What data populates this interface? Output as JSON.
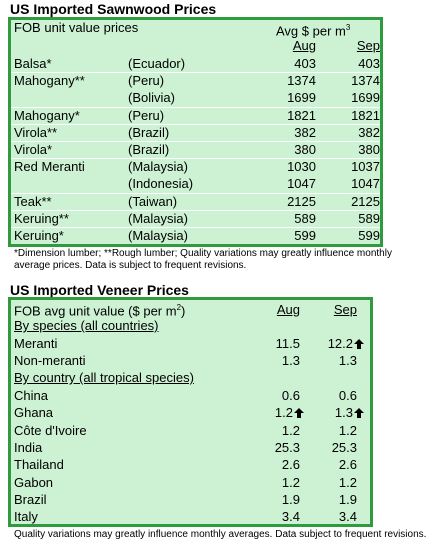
{
  "sawnwood": {
    "title": "US Imported Sawnwood Prices",
    "header": {
      "label": "FOB unit value prices",
      "price_label": "Avg $ per m",
      "price_exponent": "3",
      "aug": "Aug",
      "sep": "Sep"
    },
    "rows": [
      {
        "wood": "Balsa*",
        "origin": "(Ecuador)",
        "aug": 403,
        "sep": 403
      },
      {
        "wood": "Mahogany**",
        "origin": "(Peru)",
        "aug": 1374,
        "sep": 1374
      },
      {
        "origin": "(Bolivia)",
        "aug": 1699,
        "sep": 1699
      },
      {
        "wood": "Mahogany*",
        "origin": "(Peru)",
        "aug": 1821,
        "sep": 1821
      },
      {
        "wood": "Virola**",
        "origin": "(Brazil)",
        "aug": 382,
        "sep": 382
      },
      {
        "wood": "Virola*",
        "origin": "(Brazil)",
        "aug": 380,
        "sep": 380
      },
      {
        "wood": "Red Meranti",
        "origin": "(Malaysia)",
        "aug": 1030,
        "sep": 1037
      },
      {
        "origin": "(Indonesia)",
        "aug": 1047,
        "sep": 1047
      },
      {
        "wood": "Teak**",
        "origin": "(Taiwan)",
        "aug": 2125,
        "sep": 2125
      },
      {
        "wood": "Keruing**",
        "origin": "(Malaysia)",
        "aug": 589,
        "sep": 589
      },
      {
        "wood": "Keruing*",
        "origin": "(Malaysia)",
        "aug": 599,
        "sep": 599
      }
    ],
    "footnote": "*Dimension lumber; **Rough lumber; Quality variations may greatly influence monthly average prices. Data is subject to frequent revisions."
  },
  "veneer": {
    "title": "US Imported Veneer Prices",
    "header": {
      "label": "FOB avg unit value ($ per m",
      "exponent": "2",
      "label_end": ")",
      "aug": "Aug",
      "sep": "Sep"
    },
    "by_species": {
      "heading": "By species (all countries)",
      "rows": [
        {
          "name": "Meranti",
          "aug": 11.5,
          "sep": 12.2
        },
        {
          "name": "Non-meranti",
          "aug": 1.3,
          "sep": 1.3
        }
      ]
    },
    "by_country": {
      "heading": "By country (all tropical species)",
      "rows": [
        {
          "name": "China",
          "aug": 0.6,
          "sep": 0.6
        },
        {
          "name": "Ghana",
          "aug": 1.2,
          "sep": 1.3
        },
        {
          "name": "Côte d'Ivoire",
          "aug": 1.2,
          "sep": 1.2
        },
        {
          "name": "India",
          "aug": 25.3,
          "sep": 25.3
        },
        {
          "name": "Thailand",
          "aug": 2.6,
          "sep": 2.6
        },
        {
          "name": "Gabon",
          "aug": 1.2,
          "sep": 1.2
        },
        {
          "name": "Brazil",
          "aug": 1.9,
          "sep": 1.9
        },
        {
          "name": "Italy",
          "aug": 3.4,
          "sep": 3.4
        }
      ]
    },
    "footnote": "Quality variations may greatly influence monthly averages. Data subject to frequent revisions."
  }
}
